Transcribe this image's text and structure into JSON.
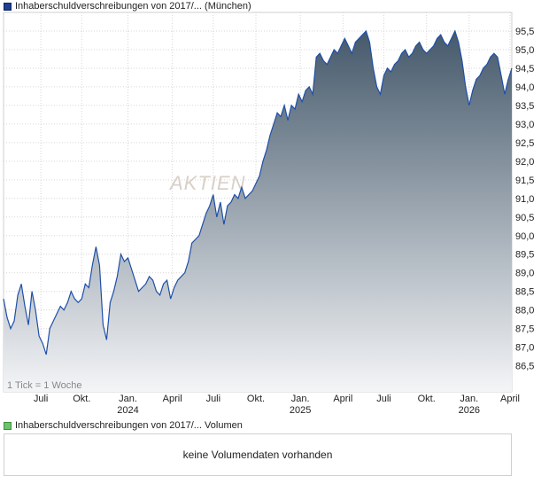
{
  "legend_price": {
    "label": "Inhaberschuldverschreibungen von 2017/... (München)"
  },
  "legend_volume": {
    "label": "Inhaberschuldverschreibungen von 2017/... Volumen"
  },
  "volume_message": "keine Volumendaten vorhanden",
  "tick_note": "1 Tick = 1 Woche",
  "watermark": "AKTIEN",
  "colors": {
    "line": "#1f4fa8",
    "fill_top": "#45596b",
    "fill_bottom": "#f4f5f7",
    "grid": "#d6d6d6"
  },
  "chart_data": {
    "type": "area",
    "y_range": [
      85.8,
      96.0
    ],
    "x_range": [
      0,
      143
    ],
    "y_ticks": [
      "86,5",
      "87,0",
      "87,5",
      "88,0",
      "88,5",
      "89,0",
      "89,5",
      "90,0",
      "90,5",
      "91,0",
      "91,5",
      "92,0",
      "92,5",
      "93,0",
      "93,5",
      "94,0",
      "94,5",
      "95,0",
      "95,5"
    ],
    "x_ticks": [
      {
        "label": "Juli",
        "sub": "",
        "x": 10.5
      },
      {
        "label": "Okt.",
        "sub": "",
        "x": 22
      },
      {
        "label": "Jan.",
        "sub": "2024",
        "x": 35
      },
      {
        "label": "April",
        "sub": "",
        "x": 47.5
      },
      {
        "label": "Juli",
        "sub": "",
        "x": 59
      },
      {
        "label": "Okt.",
        "sub": "",
        "x": 71
      },
      {
        "label": "Jan.",
        "sub": "2025",
        "x": 83.5
      },
      {
        "label": "April",
        "sub": "",
        "x": 95.5
      },
      {
        "label": "Juli",
        "sub": "",
        "x": 107
      },
      {
        "label": "Okt.",
        "sub": "",
        "x": 119
      },
      {
        "label": "Jan.",
        "sub": "2026",
        "x": 131
      },
      {
        "label": "April",
        "sub": "",
        "x": 142.5
      }
    ],
    "x": [
      0,
      1,
      2,
      3,
      4,
      5,
      6,
      7,
      8,
      9,
      10,
      11,
      12,
      13,
      14,
      15,
      16,
      17,
      18,
      19,
      20,
      21,
      22,
      23,
      24,
      25,
      26,
      27,
      28,
      29,
      30,
      31,
      32,
      33,
      34,
      35,
      36,
      37,
      38,
      39,
      40,
      41,
      42,
      43,
      44,
      45,
      46,
      47,
      48,
      49,
      50,
      51,
      52,
      53,
      54,
      55,
      56,
      57,
      58,
      59,
      60,
      61,
      62,
      63,
      64,
      65,
      66,
      67,
      68,
      69,
      70,
      71,
      72,
      73,
      74,
      75,
      76,
      77,
      78,
      79,
      80,
      81,
      82,
      83,
      84,
      85,
      86,
      87,
      88,
      89,
      90,
      91,
      92,
      93,
      94,
      95,
      96,
      97,
      98,
      99,
      100,
      101,
      102,
      103,
      104,
      105,
      106,
      107,
      108,
      109,
      110,
      111,
      112,
      113,
      114,
      115,
      116,
      117,
      118,
      119,
      120,
      121,
      122,
      123,
      124,
      125,
      126,
      127,
      128,
      129,
      130,
      131,
      132,
      133,
      134,
      135,
      136,
      137,
      138,
      139,
      140,
      141,
      142,
      143
    ],
    "values": [
      88.3,
      87.8,
      87.5,
      87.7,
      88.4,
      88.7,
      88.1,
      87.6,
      88.5,
      88.0,
      87.3,
      87.1,
      86.8,
      87.5,
      87.7,
      87.9,
      88.1,
      88.0,
      88.2,
      88.5,
      88.3,
      88.2,
      88.3,
      88.7,
      88.6,
      89.2,
      89.7,
      89.2,
      87.6,
      87.2,
      88.2,
      88.5,
      88.9,
      89.5,
      89.3,
      89.4,
      89.1,
      88.8,
      88.5,
      88.6,
      88.7,
      88.9,
      88.8,
      88.5,
      88.4,
      88.7,
      88.8,
      88.3,
      88.6,
      88.8,
      88.9,
      89.0,
      89.3,
      89.8,
      89.9,
      90.0,
      90.3,
      90.6,
      90.8,
      91.1,
      90.5,
      90.9,
      90.3,
      90.8,
      90.9,
      91.1,
      91.0,
      91.3,
      91.0,
      91.1,
      91.2,
      91.4,
      91.6,
      92.0,
      92.3,
      92.7,
      93.0,
      93.3,
      93.2,
      93.5,
      93.1,
      93.5,
      93.4,
      93.8,
      93.6,
      93.9,
      94.0,
      93.8,
      94.8,
      94.9,
      94.7,
      94.6,
      94.8,
      95.0,
      94.9,
      95.1,
      95.3,
      95.1,
      94.9,
      95.2,
      95.3,
      95.4,
      95.5,
      95.2,
      94.5,
      94.0,
      93.8,
      94.3,
      94.5,
      94.4,
      94.6,
      94.7,
      94.9,
      95.0,
      94.8,
      94.9,
      95.1,
      95.2,
      95.0,
      94.9,
      95.0,
      95.1,
      95.3,
      95.4,
      95.2,
      95.1,
      95.3,
      95.5,
      95.2,
      94.7,
      94.0,
      93.5,
      93.9,
      94.2,
      94.3,
      94.5,
      94.6,
      94.8,
      94.9,
      94.8,
      94.3,
      93.8,
      94.2,
      94.5
    ]
  }
}
